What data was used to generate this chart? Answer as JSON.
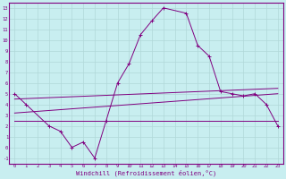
{
  "xlabel": "Windchill (Refroidissement éolien,°C)",
  "bg_color": "#c8eef0",
  "line_color": "#800080",
  "grid_color": "#b0d8d8",
  "xlim": [
    -0.5,
    23.5
  ],
  "ylim": [
    -1.5,
    13.5
  ],
  "xticks": [
    0,
    1,
    2,
    3,
    4,
    5,
    6,
    7,
    8,
    9,
    10,
    11,
    12,
    13,
    14,
    15,
    16,
    17,
    18,
    19,
    20,
    21,
    22,
    23
  ],
  "yticks": [
    -1,
    0,
    1,
    2,
    3,
    4,
    5,
    6,
    7,
    8,
    9,
    10,
    11,
    12,
    13
  ],
  "main_x": [
    0,
    1,
    3,
    4,
    5,
    6,
    7,
    8,
    9,
    10,
    11,
    12,
    13,
    15,
    16,
    17,
    18,
    19,
    20,
    21,
    22,
    23
  ],
  "main_y": [
    5,
    4,
    2,
    1.5,
    0,
    0.5,
    -1,
    2.5,
    6,
    7.8,
    10.5,
    11.8,
    13,
    12.5,
    9.5,
    8.5,
    5.2,
    5,
    4.8,
    5,
    4,
    2
  ],
  "line1_x": [
    0,
    23
  ],
  "line1_y": [
    4.5,
    5.5
  ],
  "line2_x": [
    0,
    23
  ],
  "line2_y": [
    3.2,
    5.0
  ],
  "line3_x": [
    0,
    23
  ],
  "line3_y": [
    2.5,
    2.5
  ]
}
